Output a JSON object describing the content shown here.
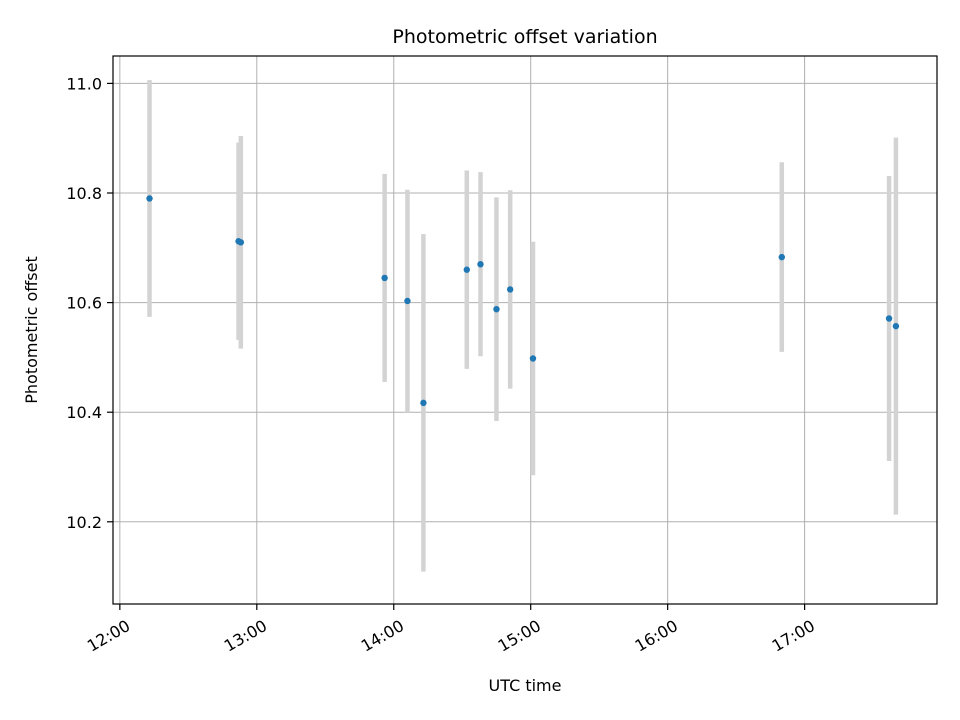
{
  "chart_data": {
    "type": "scatter",
    "title": "Photometric offset variation",
    "xlabel": "UTC time",
    "ylabel": "Photometric offset",
    "x_type": "time",
    "xlim": [
      "11:57",
      "17:58"
    ],
    "ylim": [
      10.05,
      11.05
    ],
    "x_ticks": [
      "12:00",
      "13:00",
      "14:00",
      "15:00",
      "16:00",
      "17:00"
    ],
    "y_ticks": [
      10.2,
      10.4,
      10.6,
      10.8,
      11.0
    ],
    "y_tick_labels": [
      "10.2",
      "10.4",
      "10.6",
      "10.8",
      "11.0"
    ],
    "grid": true,
    "colors": {
      "points": "#1f77b4",
      "errorbars": "#d3d3d3",
      "grid": "#b0b0b0"
    },
    "series": [
      {
        "x": [
          "12:13",
          "12:52",
          "12:53",
          "13:56",
          "14:06",
          "14:13",
          "14:32",
          "14:38",
          "14:45",
          "14:51",
          "15:01",
          "16:50",
          "17:37",
          "17:40"
        ],
        "y": [
          10.79,
          10.712,
          10.71,
          10.645,
          10.603,
          10.417,
          10.66,
          10.67,
          10.588,
          10.624,
          10.498,
          10.683,
          10.571,
          10.557
        ],
        "yerr": [
          0.216,
          0.18,
          0.194,
          0.19,
          0.203,
          0.308,
          0.181,
          0.168,
          0.204,
          0.181,
          0.213,
          0.173,
          0.26,
          0.344
        ]
      }
    ]
  }
}
